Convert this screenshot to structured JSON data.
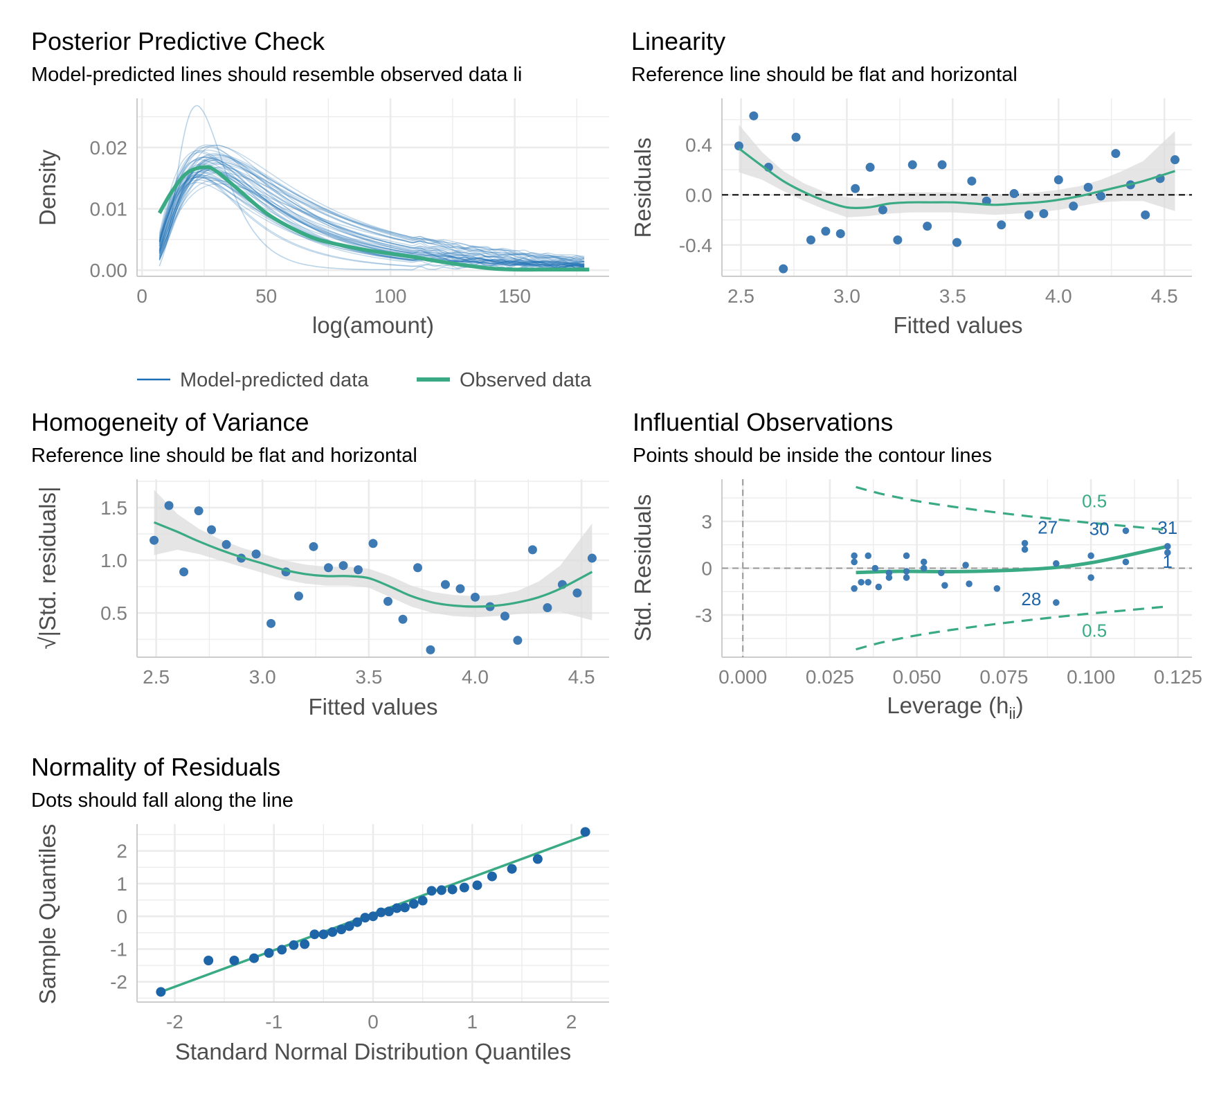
{
  "colors": {
    "model_line": "#1b6fb5",
    "observed_line": "#3aaa85",
    "point": "#3d7ab3",
    "point_dark": "#1e65a8",
    "band": "#dcdcdc",
    "grid": "#ebebeb",
    "axis": "#cccccc"
  },
  "chart_data": [
    {
      "id": "ppc",
      "type": "line",
      "title": "Posterior Predictive Check",
      "subtitle": "Model-predicted lines should resemble observed data li",
      "xlabel": "log(amount)",
      "ylabel": "Density",
      "xlim": [
        -2,
        188
      ],
      "ylim": [
        -0.001,
        0.028
      ],
      "xticks": [
        0,
        50,
        100,
        150
      ],
      "yticks": [
        0.0,
        0.01,
        0.02
      ],
      "ytick_labels": [
        "0.00",
        "0.01",
        "0.02"
      ],
      "legend": [
        "Model-predicted data",
        "Observed data"
      ],
      "legend_position": "bottom",
      "series": [
        {
          "name": "Observed data",
          "x": [
            7,
            12,
            18,
            25,
            30,
            40,
            50,
            60,
            70,
            80,
            90,
            100,
            110,
            120,
            130,
            140,
            150,
            160,
            170,
            180
          ],
          "y": [
            0.0093,
            0.0128,
            0.0158,
            0.0168,
            0.0161,
            0.0127,
            0.0093,
            0.0069,
            0.0051,
            0.0041,
            0.0033,
            0.0027,
            0.0021,
            0.0014,
            0.0008,
            0.0003,
            0.0001,
            0.0001,
            0.0001,
            0.0001
          ]
        },
        {
          "name": "Model-predicted data",
          "draws": 50,
          "x_range": [
            7,
            180
          ],
          "peak_x_range": [
            22,
            32
          ],
          "peak_y_range": [
            0.014,
            0.0205
          ],
          "outlier_draw_peak_y": 0.0268
        }
      ]
    },
    {
      "id": "linearity",
      "type": "scatter",
      "title": "Linearity",
      "subtitle": "Reference line should be flat and horizontal",
      "xlabel": "Fitted values",
      "ylabel": "Residuals",
      "xlim": [
        2.41,
        4.63
      ],
      "ylim": [
        -0.65,
        0.77
      ],
      "xticks": [
        2.5,
        3.0,
        3.5,
        4.0,
        4.5
      ],
      "xtick_labels": [
        "2.5",
        "3.0",
        "3.5",
        "4.0",
        "4.5"
      ],
      "yticks": [
        -0.4,
        0.0,
        0.4
      ],
      "ytick_labels": [
        "-0.4",
        "0.0",
        "0.4"
      ],
      "reference_line": 0,
      "points": [
        [
          2.49,
          0.39
        ],
        [
          2.56,
          0.63
        ],
        [
          2.63,
          0.22
        ],
        [
          2.7,
          -0.59
        ],
        [
          2.76,
          0.46
        ],
        [
          2.83,
          -0.36
        ],
        [
          2.9,
          -0.29
        ],
        [
          2.97,
          -0.31
        ],
        [
          3.04,
          0.05
        ],
        [
          3.11,
          0.22
        ],
        [
          3.17,
          -0.12
        ],
        [
          3.24,
          -0.36
        ],
        [
          3.31,
          0.24
        ],
        [
          3.38,
          -0.25
        ],
        [
          3.45,
          0.24
        ],
        [
          3.52,
          -0.38
        ],
        [
          3.59,
          0.11
        ],
        [
          3.66,
          -0.05
        ],
        [
          3.73,
          -0.24
        ],
        [
          3.79,
          0.01
        ],
        [
          3.86,
          -0.16
        ],
        [
          3.93,
          -0.15
        ],
        [
          4.0,
          0.12
        ],
        [
          4.07,
          -0.09
        ],
        [
          4.14,
          0.06
        ],
        [
          4.2,
          -0.01
        ],
        [
          4.27,
          0.33
        ],
        [
          4.34,
          0.08
        ],
        [
          4.41,
          -0.16
        ],
        [
          4.48,
          0.13
        ],
        [
          4.55,
          0.28
        ]
      ],
      "smooth": {
        "x": [
          2.49,
          2.6,
          2.7,
          2.8,
          2.9,
          3.0,
          3.1,
          3.2,
          3.3,
          3.4,
          3.5,
          3.6,
          3.7,
          3.8,
          3.9,
          4.0,
          4.1,
          4.2,
          4.3,
          4.4,
          4.55
        ],
        "y": [
          0.37,
          0.23,
          0.11,
          0.02,
          -0.05,
          -0.1,
          -0.1,
          -0.07,
          -0.06,
          -0.06,
          -0.06,
          -0.07,
          -0.08,
          -0.07,
          -0.06,
          -0.04,
          -0.01,
          0.03,
          0.07,
          0.11,
          0.19
        ],
        "upper": [
          0.56,
          0.34,
          0.19,
          0.09,
          0.02,
          -0.02,
          -0.03,
          0.01,
          0.02,
          0.02,
          0.02,
          0.01,
          0.0,
          0.01,
          0.02,
          0.04,
          0.07,
          0.12,
          0.19,
          0.27,
          0.51
        ],
        "lower": [
          0.18,
          0.12,
          0.03,
          -0.05,
          -0.12,
          -0.18,
          -0.17,
          -0.15,
          -0.14,
          -0.14,
          -0.14,
          -0.15,
          -0.16,
          -0.15,
          -0.14,
          -0.12,
          -0.09,
          -0.06,
          -0.05,
          -0.05,
          -0.13
        ]
      }
    },
    {
      "id": "homogeneity",
      "type": "scatter",
      "title": "Homogeneity of Variance",
      "subtitle": "Reference line should be flat and horizontal",
      "xlabel": "Fitted values",
      "ylabel": "|Std. residuals|",
      "ylabel_prefix": "√",
      "xlim": [
        2.41,
        4.63
      ],
      "ylim": [
        0.08,
        1.77
      ],
      "xticks": [
        2.5,
        3.0,
        3.5,
        4.0,
        4.5
      ],
      "xtick_labels": [
        "2.5",
        "3.0",
        "3.5",
        "4.0",
        "4.5"
      ],
      "yticks": [
        0.5,
        1.0,
        1.5
      ],
      "ytick_labels": [
        "0.5",
        "1.0",
        "1.5"
      ],
      "points": [
        [
          2.49,
          1.19
        ],
        [
          2.56,
          1.52
        ],
        [
          2.63,
          0.89
        ],
        [
          2.7,
          1.47
        ],
        [
          2.76,
          1.29
        ],
        [
          2.83,
          1.15
        ],
        [
          2.9,
          1.02
        ],
        [
          2.97,
          1.06
        ],
        [
          3.04,
          0.4
        ],
        [
          3.11,
          0.89
        ],
        [
          3.17,
          0.66
        ],
        [
          3.24,
          1.13
        ],
        [
          3.31,
          0.93
        ],
        [
          3.38,
          0.95
        ],
        [
          3.45,
          0.91
        ],
        [
          3.52,
          1.16
        ],
        [
          3.59,
          0.61
        ],
        [
          3.66,
          0.44
        ],
        [
          3.73,
          0.93
        ],
        [
          3.79,
          0.15
        ],
        [
          3.86,
          0.77
        ],
        [
          3.93,
          0.73
        ],
        [
          4.0,
          0.65
        ],
        [
          4.07,
          0.56
        ],
        [
          4.14,
          0.47
        ],
        [
          4.2,
          0.24
        ],
        [
          4.27,
          1.1
        ],
        [
          4.34,
          0.55
        ],
        [
          4.41,
          0.77
        ],
        [
          4.48,
          0.69
        ],
        [
          4.55,
          1.02
        ]
      ],
      "smooth": {
        "x": [
          2.49,
          2.6,
          2.7,
          2.8,
          2.9,
          3.0,
          3.1,
          3.2,
          3.3,
          3.4,
          3.5,
          3.6,
          3.7,
          3.8,
          3.9,
          4.0,
          4.1,
          4.2,
          4.3,
          4.4,
          4.55
        ],
        "y": [
          1.36,
          1.27,
          1.18,
          1.1,
          1.03,
          0.97,
          0.91,
          0.87,
          0.85,
          0.85,
          0.83,
          0.75,
          0.66,
          0.6,
          0.57,
          0.56,
          0.57,
          0.6,
          0.65,
          0.73,
          0.89
        ],
        "upper": [
          1.67,
          1.44,
          1.3,
          1.2,
          1.12,
          1.06,
          1.0,
          0.96,
          0.94,
          0.94,
          0.92,
          0.85,
          0.76,
          0.7,
          0.67,
          0.66,
          0.67,
          0.71,
          0.8,
          0.95,
          1.35
        ],
        "lower": [
          1.05,
          1.1,
          1.06,
          1.0,
          0.94,
          0.88,
          0.82,
          0.78,
          0.76,
          0.76,
          0.74,
          0.65,
          0.56,
          0.5,
          0.47,
          0.46,
          0.47,
          0.49,
          0.5,
          0.51,
          0.43
        ]
      }
    },
    {
      "id": "influential",
      "type": "scatter",
      "title": "Influential Observations",
      "subtitle": "Points should be inside the contour lines",
      "xlabel": "Leverage (h",
      "xlabel_sub": "ii",
      "xlabel_close": ")",
      "ylabel": "Std. Residuals",
      "xlim": [
        -0.006,
        0.129
      ],
      "ylim": [
        -5.7,
        5.7
      ],
      "xticks": [
        0.0,
        0.025,
        0.05,
        0.075,
        0.1,
        0.125
      ],
      "xtick_labels": [
        "0.000",
        "0.025",
        "0.050",
        "0.075",
        "0.100",
        "0.125"
      ],
      "yticks": [
        -3,
        0,
        3
      ],
      "ytick_labels": [
        "-3",
        "0",
        "3"
      ],
      "contour_label": "0.5",
      "contour_upper": {
        "x": [
          0.0325,
          0.04,
          0.05,
          0.06,
          0.07,
          0.08,
          0.09,
          0.1,
          0.11,
          0.122
        ],
        "y": [
          5.2,
          4.75,
          4.3,
          3.95,
          3.65,
          3.38,
          3.13,
          2.9,
          2.7,
          2.45
        ]
      },
      "contour_lower": {
        "x": [
          0.0325,
          0.04,
          0.05,
          0.06,
          0.07,
          0.08,
          0.09,
          0.1,
          0.11,
          0.122
        ],
        "y": [
          -5.2,
          -4.75,
          -4.3,
          -3.95,
          -3.65,
          -3.38,
          -3.13,
          -2.9,
          -2.7,
          -2.45
        ]
      },
      "points": [
        [
          0.032,
          0.8
        ],
        [
          0.032,
          0.4
        ],
        [
          0.032,
          -1.3
        ],
        [
          0.034,
          -0.9
        ],
        [
          0.036,
          0.8
        ],
        [
          0.036,
          -0.9
        ],
        [
          0.038,
          0.0
        ],
        [
          0.039,
          -1.2
        ],
        [
          0.042,
          -0.3
        ],
        [
          0.042,
          -0.6
        ],
        [
          0.047,
          -0.2
        ],
        [
          0.047,
          -0.6
        ],
        [
          0.047,
          0.8
        ],
        [
          0.052,
          0.0
        ],
        [
          0.052,
          0.4
        ],
        [
          0.057,
          -0.3
        ],
        [
          0.058,
          -1.1
        ],
        [
          0.064,
          0.2
        ],
        [
          0.065,
          -1.0
        ],
        [
          0.073,
          -1.3
        ],
        [
          0.081,
          1.6
        ],
        [
          0.081,
          1.2
        ],
        [
          0.09,
          0.3
        ],
        [
          0.09,
          -2.2
        ],
        [
          0.1,
          0.8
        ],
        [
          0.1,
          -0.6
        ],
        [
          0.11,
          2.4
        ],
        [
          0.11,
          0.4
        ],
        [
          0.122,
          1.4
        ],
        [
          0.122,
          1.0
        ]
      ],
      "labeled_points": [
        {
          "label": "27",
          "x": 0.081,
          "y": 1.6
        },
        {
          "label": "30",
          "x": 0.1,
          "y": 0.8
        },
        {
          "label": "31",
          "x": 0.122,
          "y": 1.4
        },
        {
          "label": "1",
          "x": 0.122,
          "y": 1.0
        },
        {
          "label": "28",
          "x": 0.09,
          "y": -2.2
        }
      ],
      "smooth": {
        "x": [
          0.0325,
          0.045,
          0.06,
          0.075,
          0.09,
          0.1,
          0.11,
          0.122
        ],
        "y": [
          -0.28,
          -0.2,
          -0.22,
          -0.15,
          0.05,
          0.35,
          0.8,
          1.4
        ]
      }
    },
    {
      "id": "qq",
      "type": "scatter",
      "title": "Normality of Residuals",
      "subtitle": "Dots should fall along the line",
      "xlabel": "Standard Normal Distribution Quantiles",
      "ylabel": "Sample Quantiles",
      "xlim": [
        -2.38,
        2.38
      ],
      "ylim": [
        -2.62,
        2.82
      ],
      "xticks": [
        -2,
        -1,
        0,
        1,
        2
      ],
      "xtick_labels": [
        "-2",
        "-1",
        "0",
        "1",
        "2"
      ],
      "yticks": [
        -2,
        -1,
        0,
        1,
        2
      ],
      "ytick_labels": [
        "-2",
        "-1",
        "0",
        "1",
        "2"
      ],
      "reference": {
        "x": [
          -2.14,
          2.14
        ],
        "y": [
          -2.31,
          2.47
        ]
      },
      "points": [
        [
          -2.14,
          -2.31
        ],
        [
          -1.66,
          -1.35
        ],
        [
          -1.4,
          -1.35
        ],
        [
          -1.2,
          -1.28
        ],
        [
          -1.05,
          -1.12
        ],
        [
          -0.92,
          -1.02
        ],
        [
          -0.8,
          -0.88
        ],
        [
          -0.69,
          -0.85
        ],
        [
          -0.59,
          -0.55
        ],
        [
          -0.5,
          -0.55
        ],
        [
          -0.41,
          -0.48
        ],
        [
          -0.32,
          -0.4
        ],
        [
          -0.24,
          -0.3
        ],
        [
          -0.16,
          -0.18
        ],
        [
          -0.08,
          -0.04
        ],
        [
          0.0,
          0.0
        ],
        [
          0.08,
          0.12
        ],
        [
          0.16,
          0.15
        ],
        [
          0.24,
          0.25
        ],
        [
          0.32,
          0.27
        ],
        [
          0.41,
          0.38
        ],
        [
          0.5,
          0.48
        ],
        [
          0.59,
          0.78
        ],
        [
          0.69,
          0.8
        ],
        [
          0.8,
          0.82
        ],
        [
          0.92,
          0.88
        ],
        [
          1.05,
          0.95
        ],
        [
          1.2,
          1.22
        ],
        [
          1.4,
          1.45
        ],
        [
          1.66,
          1.75
        ],
        [
          2.14,
          2.58
        ]
      ]
    }
  ]
}
